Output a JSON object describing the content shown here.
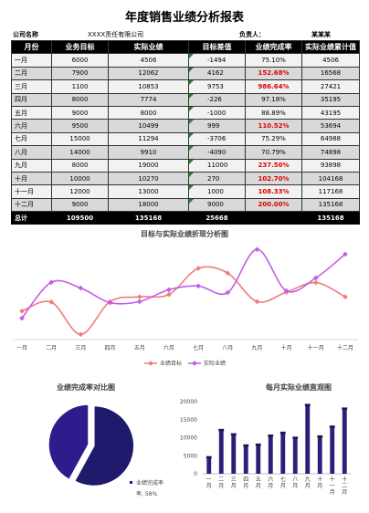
{
  "report": {
    "title": "年度销售业绩分析报表",
    "company_label": "公司名称",
    "company_value": "XXXX责任有限公司",
    "manager_label": "负责人：",
    "manager_value": "某某某"
  },
  "table": {
    "headers": [
      "月份",
      "业务目标",
      "实际业绩",
      "目标差值",
      "业绩完成率",
      "实际业绩累计值"
    ],
    "rows": [
      {
        "month": "一月",
        "target": "6000",
        "actual": "4506",
        "diff": "-1494",
        "rate": "75.10%",
        "cum": "4506",
        "hi": false
      },
      {
        "month": "二月",
        "target": "7900",
        "actual": "12062",
        "diff": "4162",
        "rate": "152.68%",
        "cum": "16568",
        "hi": true
      },
      {
        "month": "三月",
        "target": "1100",
        "actual": "10853",
        "diff": "9753",
        "rate": "986.64%",
        "cum": "27421",
        "hi": true
      },
      {
        "month": "四月",
        "target": "8000",
        "actual": "7774",
        "diff": "-226",
        "rate": "97.18%",
        "cum": "35195",
        "hi": false
      },
      {
        "month": "五月",
        "target": "9000",
        "actual": "8000",
        "diff": "-1000",
        "rate": "88.89%",
        "cum": "43195",
        "hi": false
      },
      {
        "month": "六月",
        "target": "9500",
        "actual": "10499",
        "diff": "999",
        "rate": "110.52%",
        "cum": "53694",
        "hi": true
      },
      {
        "month": "七月",
        "target": "15000",
        "actual": "11294",
        "diff": "-3706",
        "rate": "75.29%",
        "cum": "64988",
        "hi": false
      },
      {
        "month": "八月",
        "target": "14000",
        "actual": "9910",
        "diff": "-4090",
        "rate": "70.79%",
        "cum": "74898",
        "hi": false
      },
      {
        "month": "九月",
        "target": "8000",
        "actual": "19000",
        "diff": "11000",
        "rate": "237.50%",
        "cum": "93898",
        "hi": true
      },
      {
        "month": "十月",
        "target": "10000",
        "actual": "10270",
        "diff": "270",
        "rate": "102.70%",
        "cum": "104168",
        "hi": true
      },
      {
        "month": "十一月",
        "target": "12000",
        "actual": "13000",
        "diff": "1000",
        "rate": "108.33%",
        "cum": "117168",
        "hi": true
      },
      {
        "month": "十二月",
        "target": "9000",
        "actual": "18000",
        "diff": "9000",
        "rate": "200.00%",
        "cum": "135168",
        "hi": true
      }
    ],
    "total": {
      "label": "总计",
      "target": "109500",
      "actual": "135168",
      "diff": "25668",
      "cum": "135168"
    }
  },
  "colors": {
    "target": "#f07c7c",
    "actual": "#c45ce6",
    "bar": "#2b1f7a",
    "pie_dark": "#1f1a6b",
    "pie_light": "#2e1b8c"
  },
  "chart_data": [
    {
      "type": "line",
      "title": "目标与实际业绩折现分析图",
      "categories": [
        "一月",
        "二月",
        "三月",
        "四月",
        "五月",
        "六月",
        "七月",
        "八月",
        "九月",
        "十月",
        "十一月",
        "十二月"
      ],
      "series": [
        {
          "name": "业绩目标",
          "values": [
            6000,
            7900,
            1100,
            8000,
            9000,
            9500,
            15000,
            14000,
            8000,
            10000,
            12000,
            9000
          ]
        },
        {
          "name": "实际业绩",
          "values": [
            4506,
            12062,
            10853,
            7774,
            8000,
            10499,
            11294,
            9910,
            19000,
            10270,
            13000,
            18000
          ]
        }
      ],
      "ylim": [
        0,
        20000
      ],
      "legend": "bottom"
    },
    {
      "type": "pie",
      "title": "业绩完成率对比图",
      "slices": [
        {
          "name": "",
          "value": 42
        },
        {
          "name": "业绩完成率",
          "value": 58
        }
      ],
      "label": "业绩完成率, 58%",
      "legend": "right"
    },
    {
      "type": "bar",
      "title": "每月实际业绩直观图",
      "categories": [
        "一月",
        "二月",
        "三月",
        "四月",
        "五月",
        "六月",
        "七月",
        "八月",
        "九月",
        "十月",
        "十一月",
        "十二月"
      ],
      "values": [
        4506,
        12062,
        10853,
        7774,
        8000,
        10499,
        11294,
        9910,
        19000,
        10270,
        13000,
        18000
      ],
      "yticks": [
        0,
        5000,
        10000,
        15000,
        20000
      ],
      "ylim": [
        0,
        20000
      ]
    }
  ]
}
